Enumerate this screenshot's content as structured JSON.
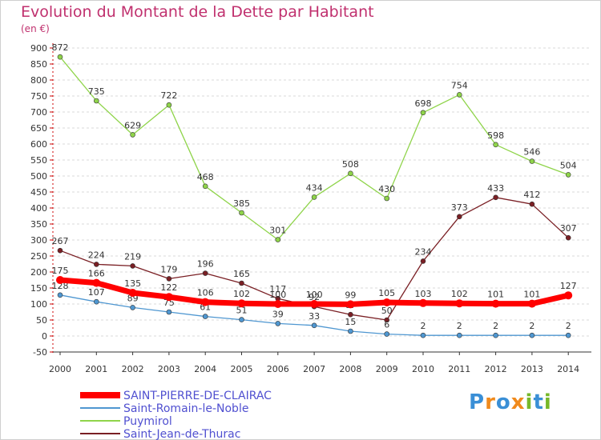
{
  "title": "Evolution du Montant de la Dette par Habitant",
  "unit_label": "(en €)",
  "logo": {
    "text": "Proxiti",
    "letters": [
      {
        "ch": "P",
        "color": "#3a8fd6"
      },
      {
        "ch": "r",
        "color": "#f08a1c"
      },
      {
        "ch": "o",
        "color": "#3a8fd6"
      },
      {
        "ch": "x",
        "color": "#f08a1c"
      },
      {
        "ch": "i",
        "color": "#77b82a"
      },
      {
        "ch": "t",
        "color": "#3a8fd6"
      },
      {
        "ch": "i",
        "color": "#77b82a"
      }
    ]
  },
  "chart_data": {
    "type": "line",
    "title": "Evolution du Montant de la Dette par Habitant",
    "ylabel": "(en €)",
    "xlabel": "",
    "x": [
      2000,
      2001,
      2002,
      2003,
      2004,
      2005,
      2006,
      2007,
      2008,
      2009,
      2010,
      2011,
      2012,
      2013,
      2014
    ],
    "ylim": [
      -50,
      900
    ],
    "yticks": [
      -50,
      0,
      50,
      100,
      150,
      200,
      250,
      300,
      350,
      400,
      450,
      500,
      550,
      600,
      650,
      700,
      750,
      800,
      850,
      900
    ],
    "grid": "horizontal-dashed",
    "legend_position": "bottom-left",
    "series": [
      {
        "name": "SAINT-PIERRE-DE-CLAIRAC",
        "color": "#ff0000",
        "values": [
          175,
          166,
          135,
          122,
          106,
          102,
          100,
          100,
          99,
          105,
          103,
          102,
          101,
          101,
          127
        ]
      },
      {
        "name": "Saint-Romain-le-Noble",
        "color": "#4f97d1",
        "values": [
          128,
          107,
          89,
          75,
          61,
          51,
          39,
          33,
          15,
          6,
          2,
          2,
          2,
          2,
          2
        ]
      },
      {
        "name": "Puymirol",
        "color": "#8fd44a",
        "values": [
          872,
          735,
          629,
          722,
          468,
          385,
          301,
          434,
          508,
          430,
          698,
          754,
          598,
          546,
          504
        ]
      },
      {
        "name": "Saint-Jean-de-Thurac",
        "color": "#7a1f24",
        "values": [
          267,
          224,
          219,
          179,
          196,
          165,
          117,
          92,
          67,
          50,
          234,
          373,
          433,
          412,
          307
        ]
      }
    ]
  }
}
